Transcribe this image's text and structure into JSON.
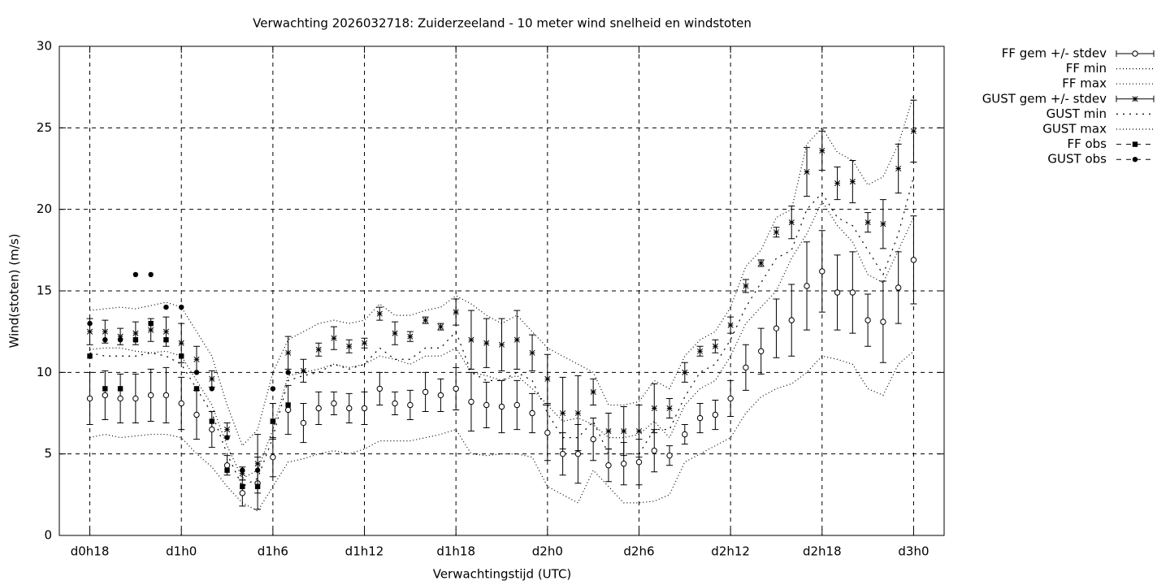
{
  "chart_data": {
    "type": "errorbar_line",
    "title": "Verwachting 2026032718: Zuiderzeeland - 10 meter wind snelheid en windstoten",
    "x_label": "Verwachtingstijd (UTC)",
    "y_label": "Wind(stoten) (m/s)",
    "x": [
      18,
      19,
      20,
      21,
      22,
      23,
      24,
      25,
      26,
      27,
      28,
      29,
      30,
      31,
      32,
      33,
      34,
      35,
      36,
      37,
      38,
      39,
      40,
      41,
      42,
      43,
      44,
      45,
      46,
      47,
      48,
      49,
      50,
      51,
      52,
      53,
      54,
      55,
      56,
      57,
      58,
      59,
      60,
      61,
      62,
      63,
      64,
      65,
      66,
      67,
      68,
      69,
      70,
      71,
      72
    ],
    "xlim": [
      16,
      74
    ],
    "xticks": [
      {
        "value": 18,
        "label": "d0h18"
      },
      {
        "value": 24,
        "label": "d1h0"
      },
      {
        "value": 30,
        "label": "d1h6"
      },
      {
        "value": 36,
        "label": "d1h12"
      },
      {
        "value": 42,
        "label": "d1h18"
      },
      {
        "value": 48,
        "label": "d2h0"
      },
      {
        "value": 54,
        "label": "d2h6"
      },
      {
        "value": 60,
        "label": "d2h12"
      },
      {
        "value": 66,
        "label": "d2h18"
      },
      {
        "value": 72,
        "label": "d3h0"
      }
    ],
    "ylim": [
      0,
      30
    ],
    "yticks": [
      0,
      5,
      10,
      15,
      20,
      25,
      30
    ],
    "grid": true,
    "legend": "outside-right",
    "series": [
      {
        "name": "FF gem +/- stdev",
        "color": "#000000",
        "marker": "circle",
        "values": [
          8.4,
          8.6,
          8.4,
          8.4,
          8.6,
          8.6,
          8.1,
          7.4,
          6.5,
          4.3,
          2.6,
          3.2,
          4.8,
          7.7,
          6.9,
          7.8,
          8.1,
          7.8,
          7.8,
          9.0,
          8.1,
          8.0,
          8.8,
          8.6,
          9.0,
          8.2,
          8.0,
          7.9,
          8.0,
          7.5,
          6.3,
          5.0,
          5.0,
          5.9,
          4.3,
          4.4,
          4.5,
          5.2,
          4.9,
          6.2,
          7.2,
          7.4,
          8.4,
          10.3,
          11.3,
          12.7,
          13.2,
          15.3,
          16.2,
          14.9,
          14.9,
          13.2,
          13.1,
          15.2,
          16.9
        ],
        "errors": [
          1.6,
          1.5,
          1.5,
          1.5,
          1.6,
          1.7,
          1.6,
          1.5,
          1.1,
          0.6,
          0.8,
          1.6,
          1.2,
          1.5,
          1.2,
          1.0,
          0.7,
          0.9,
          1.0,
          1.0,
          0.7,
          0.9,
          1.2,
          1.0,
          1.3,
          1.8,
          1.4,
          1.6,
          1.5,
          1.2,
          1.7,
          1.3,
          1.8,
          1.3,
          1.0,
          1.3,
          1.4,
          1.3,
          0.6,
          0.6,
          0.9,
          0.9,
          1.1,
          1.4,
          1.4,
          1.8,
          2.2,
          2.7,
          2.5,
          2.3,
          2.5,
          1.6,
          2.5,
          2.2,
          2.7
        ]
      },
      {
        "name": "FF min",
        "color": "#000000",
        "dash": "1,3",
        "values": [
          6.0,
          6.2,
          6.0,
          6.1,
          6.2,
          6.2,
          6.0,
          5.0,
          4.2,
          3.0,
          2.0,
          1.5,
          3.0,
          4.5,
          4.7,
          5.0,
          5.2,
          5.0,
          5.3,
          5.8,
          5.8,
          5.8,
          6.0,
          6.2,
          6.5,
          5.0,
          4.9,
          5.0,
          5.0,
          4.8,
          3.0,
          2.5,
          2.0,
          4.0,
          3.0,
          2.0,
          2.0,
          2.1,
          2.5,
          4.5,
          5.0,
          5.5,
          6.0,
          7.5,
          8.5,
          9.0,
          9.3,
          10.0,
          11.0,
          10.8,
          10.5,
          9.0,
          8.6,
          10.5,
          11.3
        ]
      },
      {
        "name": "FF max",
        "color": "#000000",
        "dash": "1,3",
        "values": [
          11.4,
          11.5,
          11.5,
          11.3,
          11.2,
          11.3,
          11.0,
          9.5,
          8.0,
          5.5,
          3.5,
          4.0,
          6.5,
          9.8,
          10.0,
          10.2,
          10.5,
          10.3,
          10.5,
          11.0,
          10.8,
          10.5,
          11.0,
          11.0,
          11.5,
          10.0,
          9.8,
          9.5,
          9.8,
          9.0,
          8.0,
          7.0,
          7.2,
          6.8,
          6.0,
          6.0,
          6.2,
          7.0,
          6.0,
          8.0,
          9.0,
          9.5,
          11.0,
          13.0,
          14.0,
          15.0,
          17.0,
          18.5,
          20.5,
          19.0,
          18.0,
          16.0,
          15.5,
          17.5,
          19.5
        ]
      },
      {
        "name": "GUST gem +/- stdev",
        "color": "#000000",
        "marker": "star",
        "values": [
          12.5,
          12.5,
          12.2,
          12.4,
          12.6,
          12.5,
          11.8,
          10.8,
          9.6,
          6.5,
          3.8,
          4.4,
          7.0,
          11.2,
          10.1,
          11.4,
          12.1,
          11.6,
          11.8,
          13.6,
          12.4,
          12.2,
          13.2,
          12.8,
          13.7,
          12.0,
          11.8,
          11.7,
          12.0,
          11.2,
          9.6,
          7.5,
          7.5,
          8.8,
          6.4,
          6.4,
          6.4,
          7.8,
          7.8,
          10.0,
          11.3,
          11.6,
          12.9,
          15.3,
          16.7,
          18.6,
          19.2,
          22.3,
          23.6,
          21.6,
          21.7,
          19.2,
          19.1,
          22.5,
          24.8
        ],
        "errors": [
          0.8,
          0.7,
          0.5,
          0.7,
          0.7,
          0.9,
          1.2,
          0.8,
          0.5,
          0.4,
          0.4,
          1.8,
          1.1,
          1.0,
          0.7,
          0.4,
          0.7,
          0.4,
          0.3,
          0.4,
          0.7,
          0.3,
          0.2,
          0.2,
          0.8,
          1.8,
          1.5,
          1.6,
          1.8,
          1.1,
          1.5,
          2.2,
          2.3,
          0.8,
          1.1,
          1.5,
          1.6,
          1.5,
          0.6,
          0.6,
          0.3,
          0.4,
          0.5,
          0.4,
          0.2,
          0.3,
          1.0,
          1.5,
          1.2,
          1.0,
          1.3,
          0.6,
          1.5,
          1.5,
          1.9
        ]
      },
      {
        "name": "GUST min",
        "color": "#000000",
        "dash": "2,6",
        "values": [
          11.2,
          11.0,
          11.0,
          11.0,
          11.2,
          11.0,
          10.5,
          9.0,
          7.5,
          5.0,
          3.0,
          3.5,
          6.0,
          9.5,
          9.8,
          10.0,
          10.5,
          10.2,
          10.5,
          11.5,
          10.8,
          10.8,
          11.5,
          11.5,
          12.5,
          10.0,
          9.5,
          9.5,
          10.0,
          9.5,
          7.5,
          6.0,
          6.0,
          7.0,
          5.0,
          5.0,
          5.0,
          6.5,
          6.5,
          8.5,
          10.0,
          10.5,
          12.0,
          14.0,
          15.5,
          17.0,
          17.5,
          20.0,
          21.0,
          19.5,
          19.0,
          17.5,
          16.0,
          18.5,
          22.0
        ]
      },
      {
        "name": "GUST max",
        "color": "#000000",
        "dash": "1,3",
        "values": [
          13.8,
          13.9,
          14.0,
          13.9,
          14.1,
          14.3,
          14.0,
          12.5,
          11.0,
          8.0,
          5.5,
          6.5,
          10.0,
          12.0,
          12.5,
          13.0,
          13.2,
          13.0,
          13.2,
          14.2,
          13.5,
          13.5,
          13.8,
          14.0,
          14.7,
          14.2,
          13.5,
          13.0,
          13.5,
          12.5,
          11.5,
          11.0,
          10.5,
          10.0,
          8.0,
          8.0,
          8.2,
          9.5,
          9.0,
          11.0,
          12.0,
          12.5,
          14.0,
          16.5,
          17.5,
          19.5,
          20.0,
          24.0,
          25.0,
          23.5,
          23.0,
          21.5,
          22.0,
          24.0,
          27.0
        ]
      },
      {
        "name": "FF obs",
        "color": "#000000",
        "marker": "square",
        "x": [
          18,
          19,
          20,
          21,
          22,
          23,
          24,
          25,
          26,
          27,
          28,
          29,
          30,
          31
        ],
        "values": [
          11,
          9,
          9,
          12,
          13,
          12,
          11,
          9,
          7,
          4,
          3,
          3,
          7,
          8
        ]
      },
      {
        "name": "GUST obs",
        "color": "#000000",
        "marker": "dot",
        "x": [
          18,
          19,
          20,
          21,
          22,
          23,
          24,
          25,
          26,
          27,
          28,
          29,
          30,
          31
        ],
        "values": [
          13,
          12,
          12,
          16,
          16,
          14,
          14,
          10,
          9,
          6,
          4,
          4,
          9,
          10
        ]
      }
    ]
  }
}
